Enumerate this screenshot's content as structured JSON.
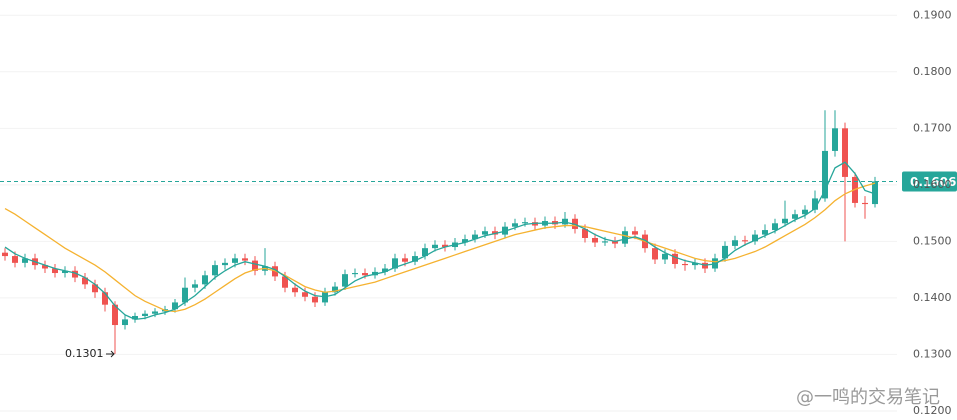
{
  "chart_data": {
    "type": "candlestick",
    "up_color": "#26a69a",
    "down_color": "#ef5350",
    "ylim": [
      0.1184,
      0.1927
    ],
    "yticks": [
      {
        "value": 0.12,
        "label": "0.1200"
      },
      {
        "value": 0.13,
        "label": "0.1300"
      },
      {
        "value": 0.14,
        "label": "0.1400"
      },
      {
        "value": 0.15,
        "label": "0.1500"
      },
      {
        "value": 0.16,
        "label": "0.1600"
      },
      {
        "value": 0.17,
        "label": "0.1700"
      },
      {
        "value": 0.18,
        "label": "0.1800"
      },
      {
        "value": 0.19,
        "label": "0.1900"
      }
    ],
    "grid": true,
    "open": [
      0.148,
      0.1474,
      0.1462,
      0.147,
      0.1458,
      0.1452,
      0.1444,
      0.1448,
      0.1436,
      0.1424,
      0.141,
      0.1388,
      0.1352,
      0.1362,
      0.1368,
      0.1372,
      0.1376,
      0.138,
      0.1392,
      0.1418,
      0.1424,
      0.144,
      0.1458,
      0.1462,
      0.147,
      0.1466,
      0.1448,
      0.1456,
      0.1438,
      0.1418,
      0.141,
      0.1402,
      0.1392,
      0.141,
      0.142,
      0.1442,
      0.1444,
      0.144,
      0.1446,
      0.1452,
      0.147,
      0.1464,
      0.1474,
      0.1488,
      0.1494,
      0.149,
      0.1498,
      0.1504,
      0.1512,
      0.1518,
      0.1512,
      0.1526,
      0.1532,
      0.1534,
      0.1528,
      0.1536,
      0.153,
      0.154,
      0.1522,
      0.1506,
      0.1498,
      0.15,
      0.1496,
      0.1518,
      0.1512,
      0.1488,
      0.1468,
      0.1478,
      0.146,
      0.1458,
      0.1462,
      0.1452,
      0.147,
      0.1492,
      0.1502,
      0.15,
      0.1512,
      0.152,
      0.1532,
      0.154,
      0.1548,
      0.1556,
      0.1576,
      0.166,
      0.17,
      0.1614,
      0.1568,
      0.1566
    ],
    "high": [
      0.1488,
      0.1482,
      0.1478,
      0.1478,
      0.1466,
      0.146,
      0.1456,
      0.1456,
      0.1444,
      0.1432,
      0.1418,
      0.1394,
      0.137,
      0.1374,
      0.1378,
      0.1382,
      0.1386,
      0.1398,
      0.1436,
      0.1432,
      0.1448,
      0.1466,
      0.147,
      0.1478,
      0.1478,
      0.1474,
      0.1488,
      0.1464,
      0.1446,
      0.1426,
      0.1418,
      0.141,
      0.1418,
      0.1428,
      0.145,
      0.1452,
      0.1452,
      0.1454,
      0.146,
      0.1478,
      0.1478,
      0.1482,
      0.1496,
      0.1502,
      0.1502,
      0.1506,
      0.1512,
      0.152,
      0.1526,
      0.1526,
      0.1534,
      0.154,
      0.1542,
      0.1542,
      0.1544,
      0.1544,
      0.1552,
      0.1548,
      0.153,
      0.1514,
      0.1508,
      0.1508,
      0.1526,
      0.1526,
      0.152,
      0.1496,
      0.1486,
      0.1486,
      0.1468,
      0.147,
      0.147,
      0.1478,
      0.15,
      0.151,
      0.151,
      0.152,
      0.153,
      0.154,
      0.1572,
      0.1556,
      0.1564,
      0.159,
      0.1732,
      0.1732,
      0.171,
      0.1622,
      0.158,
      0.1614
    ],
    "low": [
      0.1466,
      0.1454,
      0.1454,
      0.145,
      0.1444,
      0.1436,
      0.1436,
      0.1428,
      0.1416,
      0.14,
      0.1376,
      0.1301,
      0.1344,
      0.1356,
      0.1362,
      0.1366,
      0.137,
      0.1374,
      0.1386,
      0.141,
      0.1416,
      0.1432,
      0.145,
      0.1454,
      0.1458,
      0.144,
      0.144,
      0.143,
      0.141,
      0.1402,
      0.1394,
      0.1384,
      0.1386,
      0.1404,
      0.1414,
      0.1436,
      0.1434,
      0.1434,
      0.144,
      0.1446,
      0.1456,
      0.1458,
      0.1468,
      0.1482,
      0.1482,
      0.1484,
      0.1492,
      0.1498,
      0.1506,
      0.1504,
      0.1506,
      0.152,
      0.1526,
      0.152,
      0.1522,
      0.1522,
      0.1524,
      0.1514,
      0.1498,
      0.149,
      0.1492,
      0.1488,
      0.149,
      0.1504,
      0.148,
      0.146,
      0.146,
      0.1452,
      0.1448,
      0.145,
      0.1444,
      0.1446,
      0.1464,
      0.1486,
      0.1492,
      0.1494,
      0.1506,
      0.1514,
      0.1526,
      0.1534,
      0.154,
      0.155,
      0.157,
      0.165,
      0.15,
      0.156,
      0.154,
      0.156
    ],
    "close": [
      0.1474,
      0.1462,
      0.147,
      0.1458,
      0.1452,
      0.1444,
      0.1448,
      0.1436,
      0.1424,
      0.141,
      0.1388,
      0.1352,
      0.1362,
      0.1368,
      0.1372,
      0.1376,
      0.138,
      0.1392,
      0.1418,
      0.1424,
      0.144,
      0.1458,
      0.1462,
      0.147,
      0.1466,
      0.1448,
      0.1456,
      0.1438,
      0.1418,
      0.141,
      0.1402,
      0.1392,
      0.141,
      0.142,
      0.1442,
      0.1444,
      0.144,
      0.1446,
      0.1452,
      0.147,
      0.1464,
      0.1474,
      0.1488,
      0.1494,
      0.149,
      0.1498,
      0.1504,
      0.1512,
      0.1518,
      0.1512,
      0.1526,
      0.1532,
      0.1534,
      0.1528,
      0.1536,
      0.153,
      0.154,
      0.1522,
      0.1506,
      0.1498,
      0.15,
      0.1496,
      0.1518,
      0.1512,
      0.1488,
      0.1468,
      0.1478,
      0.146,
      0.1458,
      0.1462,
      0.1452,
      0.147,
      0.1492,
      0.1502,
      0.15,
      0.1512,
      0.152,
      0.1532,
      0.154,
      0.1548,
      0.1556,
      0.1576,
      0.166,
      0.17,
      0.1614,
      0.1568,
      0.1566,
      0.1606
    ],
    "lines": [
      {
        "color": "#26a69a",
        "values": [
          0.149,
          0.1478,
          0.147,
          0.1464,
          0.1458,
          0.1452,
          0.1448,
          0.1444,
          0.1436,
          0.1424,
          0.1408,
          0.1386,
          0.137,
          0.1362,
          0.1364,
          0.137,
          0.1374,
          0.138,
          0.1392,
          0.1404,
          0.142,
          0.1436,
          0.1448,
          0.1458,
          0.1464,
          0.146,
          0.1456,
          0.145,
          0.1438,
          0.1424,
          0.1412,
          0.1404,
          0.1402,
          0.1406,
          0.1418,
          0.143,
          0.1438,
          0.1442,
          0.1446,
          0.1454,
          0.146,
          0.1466,
          0.1474,
          0.1484,
          0.149,
          0.1494,
          0.1498,
          0.1504,
          0.151,
          0.1514,
          0.1518,
          0.1524,
          0.153,
          0.1532,
          0.1532,
          0.1532,
          0.1534,
          0.153,
          0.1522,
          0.1512,
          0.1504,
          0.15,
          0.1504,
          0.1508,
          0.1502,
          0.149,
          0.148,
          0.1472,
          0.1466,
          0.1462,
          0.1458,
          0.146,
          0.147,
          0.1484,
          0.1494,
          0.1502,
          0.151,
          0.1518,
          0.1528,
          0.1538,
          0.1546,
          0.1558,
          0.159,
          0.163,
          0.164,
          0.162,
          0.159,
          0.1584
        ]
      },
      {
        "color": "#f5b230",
        "values": [
          0.1558,
          0.1548,
          0.1536,
          0.1524,
          0.1512,
          0.15,
          0.1488,
          0.1478,
          0.1468,
          0.1458,
          0.1446,
          0.1432,
          0.1418,
          0.1404,
          0.1394,
          0.1386,
          0.1378,
          0.1376,
          0.138,
          0.1388,
          0.1398,
          0.141,
          0.1422,
          0.1434,
          0.1444,
          0.145,
          0.1452,
          0.1448,
          0.144,
          0.143,
          0.142,
          0.1414,
          0.141,
          0.1412,
          0.1416,
          0.142,
          0.1424,
          0.1428,
          0.1434,
          0.144,
          0.1446,
          0.1452,
          0.1458,
          0.1464,
          0.147,
          0.1476,
          0.1482,
          0.1488,
          0.1494,
          0.15,
          0.1506,
          0.1512,
          0.1516,
          0.152,
          0.1524,
          0.1526,
          0.1528,
          0.1528,
          0.1526,
          0.1522,
          0.1518,
          0.1514,
          0.151,
          0.1506,
          0.15,
          0.1494,
          0.1488,
          0.1482,
          0.1476,
          0.147,
          0.1466,
          0.1464,
          0.1466,
          0.147,
          0.1476,
          0.1482,
          0.149,
          0.15,
          0.151,
          0.152,
          0.153,
          0.1542,
          0.1556,
          0.1572,
          0.1584,
          0.1592,
          0.1598,
          0.1603
        ]
      }
    ],
    "last_price": {
      "value": 0.1606,
      "label": "0.1606"
    },
    "low_annotation": "0.1301",
    "watermark": "@一鸣的交易笔记"
  }
}
